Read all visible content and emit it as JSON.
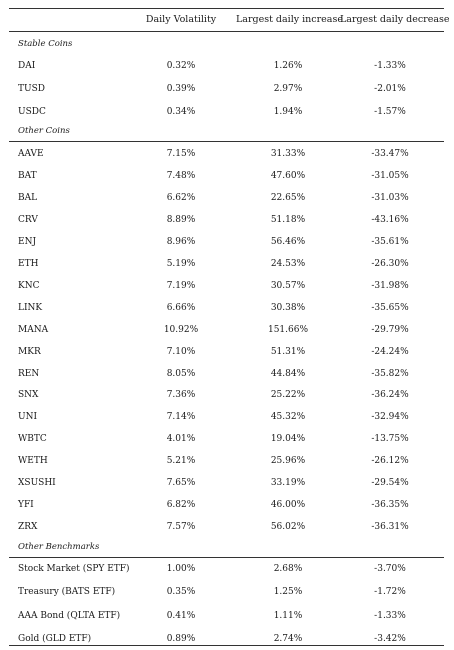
{
  "headers": [
    "",
    "Daily Volatility",
    "Largest daily increase",
    "Largest daily decrease"
  ],
  "sections": [
    {
      "title": "Stable Coins",
      "rows": [
        [
          "DAI",
          "0.32%",
          "1.26%",
          "-1.33%"
        ],
        [
          "TUSD",
          "0.39%",
          "2.97%",
          "-2.01%"
        ],
        [
          "USDC",
          "0.34%",
          "1.94%",
          "-1.57%"
        ]
      ]
    },
    {
      "title": "Other Coins",
      "rows": [
        [
          "AAVE",
          "7.15%",
          "31.33%",
          "-33.47%"
        ],
        [
          "BAT",
          "7.48%",
          "47.60%",
          "-31.05%"
        ],
        [
          "BAL",
          "6.62%",
          "22.65%",
          "-31.03%"
        ],
        [
          "CRV",
          "8.89%",
          "51.18%",
          "-43.16%"
        ],
        [
          "ENJ",
          "8.96%",
          "56.46%",
          "-35.61%"
        ],
        [
          "ETH",
          "5.19%",
          "24.53%",
          "-26.30%"
        ],
        [
          "KNC",
          "7.19%",
          "30.57%",
          "-31.98%"
        ],
        [
          "LINK",
          "6.66%",
          "30.38%",
          "-35.65%"
        ],
        [
          "MANA",
          "10.92%",
          "151.66%",
          "-29.79%"
        ],
        [
          "MKR",
          "7.10%",
          "51.31%",
          "-24.24%"
        ],
        [
          "REN",
          "8.05%",
          "44.84%",
          "-35.82%"
        ],
        [
          "SNX",
          "7.36%",
          "25.22%",
          "-36.24%"
        ],
        [
          "UNI",
          "7.14%",
          "45.32%",
          "-32.94%"
        ],
        [
          "WBTC",
          "4.01%",
          "19.04%",
          "-13.75%"
        ],
        [
          "WETH",
          "5.21%",
          "25.96%",
          "-26.12%"
        ],
        [
          "XSUSHI",
          "7.65%",
          "33.19%",
          "-29.54%"
        ],
        [
          "YFI",
          "6.82%",
          "46.00%",
          "-36.35%"
        ],
        [
          "ZRX",
          "7.57%",
          "56.02%",
          "-36.31%"
        ]
      ]
    },
    {
      "title": "Other Benchmarks",
      "rows": [
        [
          "Stock Market (SPY ETF)",
          "1.00%",
          "2.68%",
          "-3.70%"
        ],
        [
          "Treasury (BATS ETF)",
          "0.35%",
          "1.25%",
          "-1.72%"
        ],
        [
          "AAA Bond (QLTA ETF)",
          "0.41%",
          "1.11%",
          "-1.33%"
        ],
        [
          "Gold (GLD ETF)",
          "0.89%",
          "2.74%",
          "-3.42%"
        ]
      ]
    }
  ]
}
